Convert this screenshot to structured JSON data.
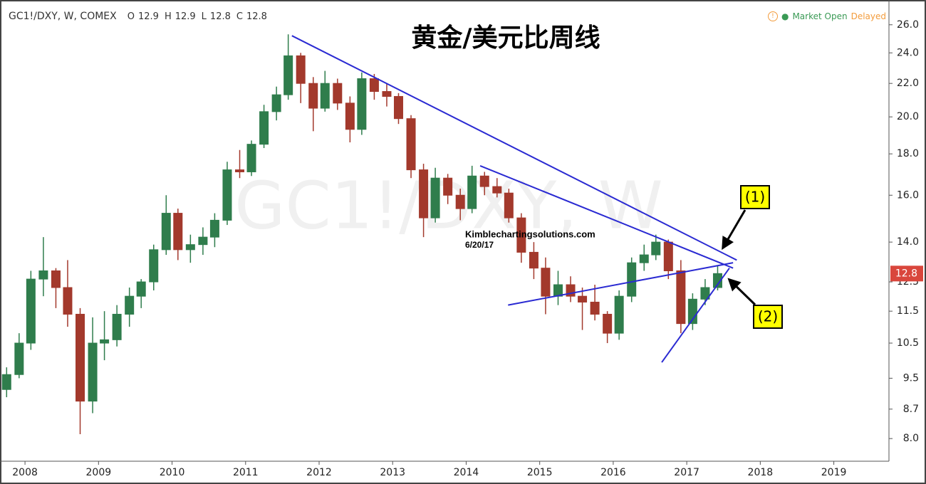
{
  "chart_data": {
    "type": "candlestick",
    "title": "黄金/美元比周线",
    "symbol": "GC1!/DXY, W, COMEX",
    "watermark": "GC1!/DXY, W",
    "ohlc_labels": [
      "O",
      "H",
      "L",
      "C"
    ],
    "ohlc_values": [
      12.9,
      12.9,
      12.8,
      12.8
    ],
    "market_status": "Market Open",
    "feed_status": "Delayed",
    "last_price": 12.8,
    "annotations": [
      "Kimblechartingsolutions.com",
      "6/20/17",
      "(1)",
      "(2)"
    ],
    "up_color": "#2f7d4c",
    "down_color": "#a3392c",
    "trendline_color": "#2a2ad2",
    "log_scale": true,
    "xlim": [
      2007.66,
      2019.75
    ],
    "xticks": [
      2008,
      2009,
      2010,
      2011,
      2012,
      2013,
      2014,
      2015,
      2016,
      2017,
      2018,
      2019
    ],
    "ylim": [
      7.5,
      27.9
    ],
    "yticks": [
      {
        "value": 8,
        "label": "8.0"
      },
      8.7,
      9.5,
      10.5,
      11.5,
      12.5,
      {
        "value": 14,
        "label": "14.0"
      },
      {
        "value": 16,
        "label": "16.0"
      },
      {
        "value": 18,
        "label": "18.0"
      },
      {
        "value": 20,
        "label": "20.0"
      },
      {
        "value": 22,
        "label": "22.0"
      },
      {
        "value": 24,
        "label": "24.0"
      },
      {
        "value": 26,
        "label": "26.0"
      }
    ],
    "x": [
      2007.75,
      2007.92,
      2008.08,
      2008.25,
      2008.42,
      2008.58,
      2008.75,
      2008.92,
      2009.08,
      2009.25,
      2009.42,
      2009.58,
      2009.75,
      2009.92,
      2010.08,
      2010.25,
      2010.42,
      2010.58,
      2010.75,
      2010.92,
      2011.08,
      2011.25,
      2011.42,
      2011.58,
      2011.75,
      2011.92,
      2012.08,
      2012.25,
      2012.42,
      2012.58,
      2012.75,
      2012.92,
      2013.08,
      2013.25,
      2013.42,
      2013.58,
      2013.75,
      2013.92,
      2014.08,
      2014.25,
      2014.42,
      2014.58,
      2014.75,
      2014.92,
      2015.08,
      2015.25,
      2015.42,
      2015.58,
      2015.75,
      2015.92,
      2016.08,
      2016.25,
      2016.42,
      2016.58,
      2016.75,
      2016.92,
      2017.08,
      2017.25,
      2017.42
    ],
    "open": [
      9.2,
      9.6,
      10.5,
      12.6,
      12.9,
      12.3,
      11.4,
      8.9,
      10.5,
      10.6,
      11.4,
      12.0,
      12.5,
      13.7,
      15.2,
      13.7,
      13.9,
      14.2,
      14.9,
      17.2,
      17.1,
      18.5,
      20.3,
      21.3,
      23.8,
      22.0,
      20.5,
      22.0,
      20.8,
      19.3,
      22.3,
      21.5,
      21.2,
      19.9,
      17.2,
      15.0,
      16.8,
      16.0,
      15.4,
      16.9,
      16.4,
      16.1,
      15.0,
      13.6,
      13.0,
      12.0,
      12.4,
      12.0,
      11.8,
      11.4,
      10.8,
      12.0,
      13.2,
      13.5,
      14.0,
      12.9,
      11.1,
      11.9,
      12.3
    ],
    "high": [
      9.8,
      10.8,
      12.9,
      14.2,
      13.0,
      13.3,
      11.6,
      11.3,
      11.5,
      11.7,
      12.3,
      12.6,
      13.9,
      16.0,
      15.4,
      14.3,
      14.6,
      15.2,
      17.6,
      18.2,
      18.7,
      20.7,
      21.8,
      25.3,
      24.0,
      22.4,
      22.8,
      22.3,
      21.2,
      22.7,
      22.6,
      22.0,
      21.4,
      20.1,
      17.5,
      17.3,
      17.0,
      16.3,
      17.4,
      17.1,
      16.8,
      16.3,
      15.2,
      14.0,
      13.4,
      12.9,
      12.7,
      12.3,
      12.4,
      11.5,
      12.2,
      13.4,
      13.9,
      14.3,
      14.1,
      13.3,
      12.1,
      12.6,
      13.1
    ],
    "low": [
      9.0,
      9.5,
      10.3,
      12.0,
      11.6,
      11.0,
      8.1,
      8.6,
      10.0,
      10.4,
      11.0,
      11.6,
      12.2,
      13.5,
      13.3,
      13.2,
      13.5,
      13.8,
      14.7,
      16.8,
      16.9,
      18.3,
      19.8,
      21.0,
      20.8,
      19.2,
      20.3,
      20.4,
      18.6,
      19.0,
      21.0,
      20.6,
      19.6,
      16.8,
      14.2,
      14.8,
      15.6,
      14.9,
      15.2,
      16.0,
      15.9,
      14.8,
      13.2,
      12.6,
      11.4,
      11.7,
      11.8,
      10.9,
      11.2,
      10.5,
      10.6,
      11.8,
      12.9,
      13.3,
      12.6,
      10.8,
      10.9,
      11.7,
      12.2
    ],
    "close": [
      9.6,
      10.5,
      12.6,
      12.9,
      12.3,
      11.4,
      8.9,
      10.5,
      10.6,
      11.4,
      12.0,
      12.5,
      13.7,
      15.2,
      13.7,
      13.9,
      14.2,
      14.9,
      17.2,
      17.1,
      18.5,
      20.3,
      21.3,
      23.8,
      22.0,
      20.5,
      22.0,
      20.8,
      19.3,
      22.3,
      21.5,
      21.2,
      19.9,
      17.2,
      15.0,
      16.8,
      16.0,
      15.4,
      16.9,
      16.4,
      16.1,
      15.0,
      13.6,
      13.0,
      12.0,
      12.4,
      12.0,
      11.8,
      11.4,
      10.8,
      12.0,
      13.2,
      13.5,
      14.0,
      12.9,
      11.1,
      11.9,
      12.3,
      12.8
    ],
    "trendlines": [
      {
        "x": [
          2011.63,
          2017.68
        ],
        "y": [
          25.2,
          13.3
        ]
      },
      {
        "x": [
          2014.19,
          2017.63
        ],
        "y": [
          17.4,
          13.0
        ]
      },
      {
        "x": [
          2014.57,
          2017.63
        ],
        "y": [
          11.7,
          13.2
        ]
      },
      {
        "x": [
          2016.66,
          2017.58
        ],
        "y": [
          9.94,
          13.0
        ]
      }
    ]
  }
}
